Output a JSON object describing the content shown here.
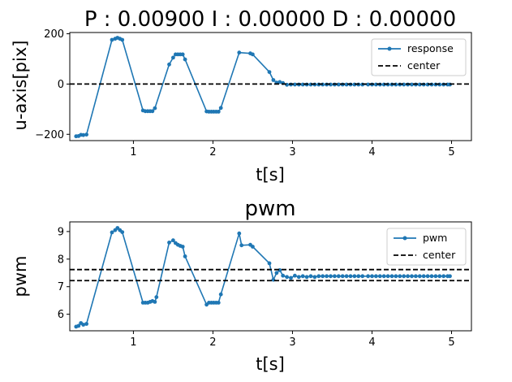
{
  "chart_data": [
    {
      "type": "line",
      "title": "P : 0.00900   I : 0.00000   D : 0.00000",
      "xlabel": "t[s]",
      "ylabel": "u-axis[pix]",
      "xlim": [
        0.2,
        5.25
      ],
      "ylim": [
        -225,
        205
      ],
      "xticks": [
        1,
        2,
        3,
        4,
        5
      ],
      "yticks": [
        -200,
        0,
        200
      ],
      "grid": false,
      "legend_position": "top-right",
      "series": [
        {
          "name": "response",
          "color": "#1f77b4",
          "style": "solid",
          "marker": "dot",
          "x": [
            0.28,
            0.31,
            0.34,
            0.37,
            0.41,
            0.73,
            0.77,
            0.8,
            0.83,
            0.86,
            1.12,
            1.15,
            1.18,
            1.21,
            1.24,
            1.27,
            1.45,
            1.5,
            1.53,
            1.56,
            1.59,
            1.62,
            1.65,
            1.92,
            1.95,
            1.98,
            2.01,
            2.04,
            2.07,
            2.1,
            2.33,
            2.47,
            2.5,
            2.71,
            2.76,
            2.8,
            2.84,
            2.88,
            2.93,
            2.98,
            3.03,
            3.08,
            3.13,
            3.18,
            3.23,
            3.28,
            3.33,
            3.38,
            3.43,
            3.48,
            3.53,
            3.58,
            3.63,
            3.68,
            3.73,
            3.78,
            3.83,
            3.88,
            3.95,
            4.0,
            4.05,
            4.1,
            4.15,
            4.2,
            4.25,
            4.3,
            4.35,
            4.4,
            4.45,
            4.5,
            4.55,
            4.6,
            4.65,
            4.7,
            4.75,
            4.8,
            4.85,
            4.9,
            4.95,
            4.98
          ],
          "y": [
            -208,
            -207,
            -202,
            -203,
            -201,
            176,
            180,
            184,
            180,
            176,
            -105,
            -108,
            -108,
            -108,
            -108,
            -96,
            78,
            105,
            118,
            118,
            118,
            118,
            98,
            -109,
            -110,
            -110,
            -110,
            -110,
            -110,
            -95,
            125,
            122,
            118,
            48,
            16,
            6,
            8,
            4,
            -3,
            -2,
            -2,
            -2,
            -2,
            -2,
            -2,
            -2,
            -2,
            -2,
            -2,
            -2,
            -2,
            -2,
            -2,
            -2,
            -2,
            -2,
            -2,
            -2,
            -2,
            -2,
            -2,
            -2,
            -2,
            -2,
            -2,
            -2,
            -2,
            -2,
            -2,
            -2,
            -2,
            -2,
            -2,
            -2,
            -2,
            -2,
            -2,
            -2,
            -2,
            -2
          ]
        },
        {
          "name": "center",
          "color": "#000000",
          "style": "dashed",
          "y_constant": 0
        }
      ]
    },
    {
      "type": "line",
      "title": "pwm",
      "xlabel": "t[s]",
      "ylabel": "pwm",
      "xlim": [
        0.2,
        5.25
      ],
      "ylim": [
        5.4,
        9.35
      ],
      "xticks": [
        1,
        2,
        3,
        4,
        5
      ],
      "yticks": [
        6,
        7,
        8,
        9
      ],
      "grid": false,
      "legend_position": "top-right",
      "series": [
        {
          "name": "pwm",
          "color": "#1f77b4",
          "style": "solid",
          "marker": "dot",
          "x": [
            0.28,
            0.31,
            0.34,
            0.37,
            0.41,
            0.73,
            0.77,
            0.8,
            0.83,
            0.86,
            1.12,
            1.15,
            1.18,
            1.21,
            1.24,
            1.27,
            1.29,
            1.45,
            1.5,
            1.53,
            1.56,
            1.59,
            1.62,
            1.65,
            1.92,
            1.95,
            1.98,
            2.01,
            2.04,
            2.07,
            2.1,
            2.33,
            2.36,
            2.47,
            2.5,
            2.71,
            2.76,
            2.8,
            2.84,
            2.88,
            2.93,
            2.98,
            3.03,
            3.08,
            3.13,
            3.18,
            3.23,
            3.28,
            3.33,
            3.38,
            3.43,
            3.48,
            3.53,
            3.58,
            3.63,
            3.68,
            3.73,
            3.78,
            3.83,
            3.88,
            3.95,
            4.0,
            4.05,
            4.1,
            4.15,
            4.2,
            4.25,
            4.3,
            4.35,
            4.4,
            4.45,
            4.5,
            4.55,
            4.6,
            4.65,
            4.7,
            4.75,
            4.8,
            4.85,
            4.9,
            4.95,
            4.98
          ],
          "y": [
            5.55,
            5.58,
            5.68,
            5.62,
            5.65,
            8.97,
            9.05,
            9.13,
            9.05,
            8.98,
            6.42,
            6.42,
            6.42,
            6.45,
            6.48,
            6.45,
            6.62,
            8.6,
            8.68,
            8.58,
            8.52,
            8.48,
            8.45,
            8.1,
            6.35,
            6.42,
            6.42,
            6.42,
            6.42,
            6.42,
            6.72,
            8.93,
            8.5,
            8.52,
            8.45,
            7.85,
            7.25,
            7.5,
            7.6,
            7.4,
            7.35,
            7.32,
            7.4,
            7.35,
            7.38,
            7.35,
            7.38,
            7.35,
            7.38,
            7.38,
            7.38,
            7.38,
            7.38,
            7.38,
            7.38,
            7.38,
            7.38,
            7.38,
            7.38,
            7.38,
            7.38,
            7.38,
            7.38,
            7.38,
            7.38,
            7.38,
            7.38,
            7.38,
            7.38,
            7.38,
            7.38,
            7.38,
            7.38,
            7.38,
            7.38,
            7.38,
            7.38,
            7.38,
            7.38,
            7.38,
            7.38,
            7.38
          ]
        },
        {
          "name": "center",
          "color": "#000000",
          "style": "dashed",
          "y_constant": [
            7.62,
            7.22
          ]
        }
      ]
    }
  ]
}
